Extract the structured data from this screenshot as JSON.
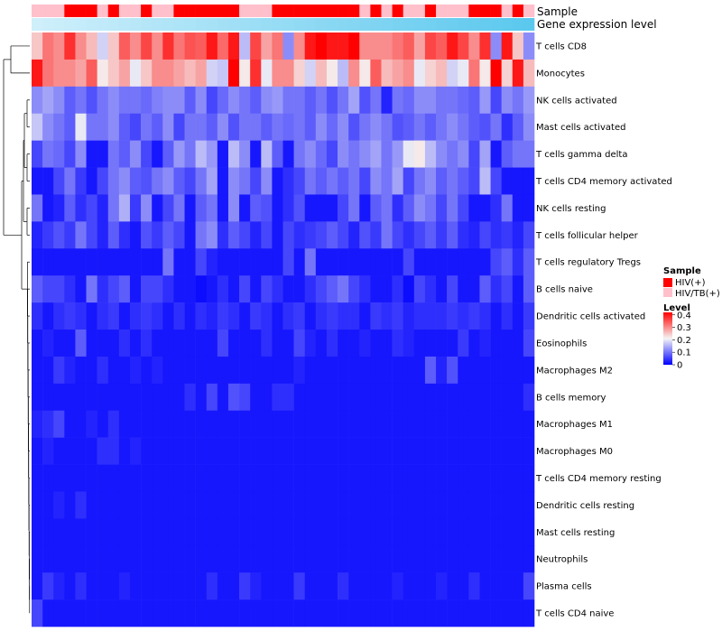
{
  "chart_data": {
    "type": "heatmap",
    "title": "",
    "columns_count": 46,
    "annotation_tracks": [
      {
        "name": "Sample",
        "label": "Sample"
      },
      {
        "name": "Gene expression level",
        "label": "Gene expression level"
      }
    ],
    "sample_groups": [
      "HIV/TB(+)",
      "HIV/TB(+)",
      "HIV/TB(+)",
      "HIV(+)",
      "HIV(+)",
      "HIV(+)",
      "HIV/TB(+)",
      "HIV(+)",
      "HIV/TB(+)",
      "HIV/TB(+)",
      "HIV(+)",
      "HIV/TB(+)",
      "HIV/TB(+)",
      "HIV(+)",
      "HIV(+)",
      "HIV(+)",
      "HIV(+)",
      "HIV(+)",
      "HIV(+)",
      "HIV/TB(+)",
      "HIV/TB(+)",
      "HIV/TB(+)",
      "HIV(+)",
      "HIV(+)",
      "HIV(+)",
      "HIV(+)",
      "HIV(+)",
      "HIV(+)",
      "HIV(+)",
      "HIV(+)",
      "HIV/TB(+)",
      "HIV(+)",
      "HIV/TB(+)",
      "HIV(+)",
      "HIV/TB(+)",
      "HIV/TB(+)",
      "HIV(+)",
      "HIV/TB(+)",
      "HIV/TB(+)",
      "HIV/TB(+)",
      "HIV(+)",
      "HIV(+)",
      "HIV(+)",
      "HIV/TB(+)",
      "HIV(+)",
      "HIV/TB(+)"
    ],
    "rows": [
      "T cells CD8",
      "Monocytes",
      "NK cells activated",
      "Mast cells activated",
      "T cells gamma delta",
      "T cells CD4 memory activated",
      "NK cells resting",
      "T cells follicular helper",
      "T cells regulatory  Tregs",
      "B cells naive",
      "Dendritic cells activated",
      "Eosinophils",
      "Macrophages M2",
      "B cells memory",
      "Macrophages M1",
      "Macrophages M0",
      "T cells CD4 memory resting",
      "Dendritic cells resting",
      "Mast cells resting",
      "Neutrophils",
      "Plasma cells",
      "T cells CD4 naive"
    ],
    "values": [
      [
        0.25,
        0.32,
        0.3,
        0.38,
        0.3,
        0.26,
        0.18,
        0.25,
        0.34,
        0.3,
        0.36,
        0.3,
        0.38,
        0.32,
        0.35,
        0.34,
        0.4,
        0.33,
        0.4,
        0.16,
        0.36,
        0.28,
        0.32,
        0.12,
        0.3,
        0.4,
        0.42,
        0.4,
        0.4,
        0.42,
        0.3,
        0.3,
        0.3,
        0.32,
        0.34,
        0.28,
        0.36,
        0.34,
        0.4,
        0.36,
        0.3,
        0.38,
        0.12,
        0.4,
        0.25,
        0.12
      ],
      [
        0.4,
        0.32,
        0.3,
        0.3,
        0.28,
        0.34,
        0.22,
        0.25,
        0.28,
        0.2,
        0.25,
        0.3,
        0.3,
        0.28,
        0.26,
        0.28,
        0.18,
        0.17,
        0.42,
        0.22,
        0.38,
        0.2,
        0.3,
        0.3,
        0.24,
        0.18,
        0.26,
        0.22,
        0.16,
        0.3,
        0.22,
        0.34,
        0.26,
        0.28,
        0.3,
        0.2,
        0.24,
        0.26,
        0.18,
        0.2,
        0.32,
        0.22,
        0.42,
        0.24,
        0.4,
        0.26
      ],
      [
        0.12,
        0.14,
        0.12,
        0.08,
        0.1,
        0.07,
        0.1,
        0.12,
        0.1,
        0.1,
        0.09,
        0.11,
        0.12,
        0.12,
        0.08,
        0.12,
        0.06,
        0.09,
        0.12,
        0.1,
        0.08,
        0.12,
        0.13,
        0.1,
        0.1,
        0.08,
        0.1,
        0.07,
        0.1,
        0.14,
        0.07,
        0.1,
        0.03,
        0.1,
        0.09,
        0.12,
        0.12,
        0.1,
        0.1,
        0.09,
        0.08,
        0.13,
        0.06,
        0.12,
        0.1,
        0.13
      ],
      [
        0.17,
        0.12,
        0.1,
        0.08,
        0.2,
        0.1,
        0.1,
        0.12,
        0.08,
        0.06,
        0.1,
        0.08,
        0.12,
        0.06,
        0.1,
        0.1,
        0.08,
        0.12,
        0.07,
        0.1,
        0.1,
        0.08,
        0.1,
        0.09,
        0.1,
        0.08,
        0.12,
        0.09,
        0.12,
        0.07,
        0.1,
        0.12,
        0.1,
        0.07,
        0.08,
        0.1,
        0.08,
        0.1,
        0.12,
        0.1,
        0.08,
        0.07,
        0.1,
        0.04,
        0.08,
        0.12
      ],
      [
        0.06,
        0.1,
        0.09,
        0.06,
        0.12,
        0.02,
        0.02,
        0.1,
        0.08,
        0.12,
        0.06,
        0.02,
        0.08,
        0.13,
        0.1,
        0.16,
        0.13,
        0.02,
        0.16,
        0.12,
        0.02,
        0.16,
        0.08,
        0.02,
        0.1,
        0.12,
        0.09,
        0.06,
        0.12,
        0.1,
        0.12,
        0.14,
        0.1,
        0.13,
        0.2,
        0.22,
        0.16,
        0.12,
        0.1,
        0.12,
        0.06,
        0.14,
        0.02,
        0.08,
        0.1,
        0.1
      ],
      [
        0.02,
        0.02,
        0.06,
        0.1,
        0.05,
        0.02,
        0.06,
        0.1,
        0.12,
        0.08,
        0.07,
        0.1,
        0.12,
        0.08,
        0.06,
        0.1,
        0.14,
        0.02,
        0.12,
        0.1,
        0.06,
        0.12,
        0.02,
        0.04,
        0.06,
        0.1,
        0.08,
        0.1,
        0.08,
        0.1,
        0.06,
        0.12,
        0.1,
        0.14,
        0.06,
        0.1,
        0.12,
        0.08,
        0.1,
        0.08,
        0.06,
        0.16,
        0.06,
        0.02,
        0.02,
        0.02
      ],
      [
        0.1,
        0.02,
        0.03,
        0.08,
        0.04,
        0.06,
        0.03,
        0.1,
        0.15,
        0.05,
        0.12,
        0.02,
        0.06,
        0.1,
        0.02,
        0.08,
        0.1,
        0.02,
        0.12,
        0.02,
        0.08,
        0.07,
        0.02,
        0.04,
        0.07,
        0.02,
        0.02,
        0.02,
        0.06,
        0.1,
        0.02,
        0.08,
        0.1,
        0.04,
        0.08,
        0.12,
        0.1,
        0.06,
        0.1,
        0.06,
        0.02,
        0.02,
        0.04,
        0.1,
        0.02,
        0.02
      ],
      [
        0.03,
        0.05,
        0.07,
        0.05,
        0.1,
        0.06,
        0.03,
        0.08,
        0.04,
        0.02,
        0.07,
        0.05,
        0.08,
        0.06,
        0.02,
        0.1,
        0.12,
        0.04,
        0.08,
        0.06,
        0.03,
        0.06,
        0.02,
        0.06,
        0.04,
        0.05,
        0.06,
        0.08,
        0.06,
        0.03,
        0.07,
        0.05,
        0.1,
        0.06,
        0.04,
        0.06,
        0.08,
        0.05,
        0.08,
        0.04,
        0.03,
        0.06,
        0.04,
        0.05,
        0.03,
        0.06
      ],
      [
        0.02,
        0.02,
        0.02,
        0.02,
        0.02,
        0.02,
        0.02,
        0.02,
        0.02,
        0.02,
        0.02,
        0.02,
        0.1,
        0.02,
        0.02,
        0.06,
        0.03,
        0.02,
        0.02,
        0.02,
        0.02,
        0.02,
        0.02,
        0.06,
        0.02,
        0.1,
        0.02,
        0.02,
        0.02,
        0.02,
        0.02,
        0.02,
        0.02,
        0.02,
        0.06,
        0.02,
        0.02,
        0.02,
        0.02,
        0.02,
        0.02,
        0.02,
        0.06,
        0.08,
        0.04,
        0.08
      ],
      [
        0.08,
        0.06,
        0.06,
        0.04,
        0.02,
        0.1,
        0.04,
        0.06,
        0.08,
        0.02,
        0.06,
        0.06,
        0.04,
        0.02,
        0.02,
        0.01,
        0.02,
        0.04,
        0.02,
        0.06,
        0.02,
        0.06,
        0.04,
        0.02,
        0.02,
        0.04,
        0.06,
        0.08,
        0.1,
        0.06,
        0.04,
        0.02,
        0.02,
        0.04,
        0.01,
        0.06,
        0.04,
        0.02,
        0.06,
        0.02,
        0.02,
        0.08,
        0.04,
        0.06,
        0.02,
        0.08
      ],
      [
        0.04,
        0.02,
        0.04,
        0.05,
        0.04,
        0.02,
        0.04,
        0.05,
        0.02,
        0.04,
        0.05,
        0.04,
        0.02,
        0.04,
        0.02,
        0.04,
        0.03,
        0.05,
        0.04,
        0.02,
        0.05,
        0.04,
        0.02,
        0.04,
        0.05,
        0.02,
        0.04,
        0.05,
        0.04,
        0.04,
        0.02,
        0.05,
        0.04,
        0.05,
        0.03,
        0.04,
        0.04,
        0.04,
        0.05,
        0.04,
        0.05,
        0.04,
        0.02,
        0.04,
        0.02,
        0.05
      ],
      [
        0.02,
        0.03,
        0.02,
        0.02,
        0.08,
        0.02,
        0.02,
        0.02,
        0.04,
        0.02,
        0.04,
        0.02,
        0.02,
        0.02,
        0.02,
        0.02,
        0.02,
        0.06,
        0.02,
        0.02,
        0.02,
        0.04,
        0.02,
        0.02,
        0.06,
        0.03,
        0.02,
        0.04,
        0.02,
        0.02,
        0.03,
        0.02,
        0.02,
        0.04,
        0.03,
        0.02,
        0.02,
        0.02,
        0.02,
        0.05,
        0.02,
        0.03,
        0.02,
        0.02,
        0.02,
        0.06
      ],
      [
        0.02,
        0.02,
        0.05,
        0.03,
        0.02,
        0.02,
        0.04,
        0.02,
        0.02,
        0.03,
        0.02,
        0.03,
        0.02,
        0.02,
        0.02,
        0.02,
        0.02,
        0.02,
        0.02,
        0.02,
        0.02,
        0.02,
        0.02,
        0.02,
        0.03,
        0.02,
        0.02,
        0.02,
        0.02,
        0.02,
        0.02,
        0.02,
        0.02,
        0.02,
        0.02,
        0.02,
        0.08,
        0.03,
        0.07,
        0.02,
        0.02,
        0.02,
        0.02,
        0.02,
        0.02,
        0.02
      ],
      [
        0.02,
        0.02,
        0.02,
        0.02,
        0.02,
        0.02,
        0.02,
        0.02,
        0.02,
        0.02,
        0.02,
        0.02,
        0.02,
        0.02,
        0.04,
        0.02,
        0.06,
        0.02,
        0.07,
        0.06,
        0.02,
        0.02,
        0.04,
        0.04,
        0.02,
        0.02,
        0.02,
        0.02,
        0.02,
        0.02,
        0.02,
        0.02,
        0.02,
        0.02,
        0.02,
        0.02,
        0.02,
        0.02,
        0.02,
        0.02,
        0.02,
        0.02,
        0.02,
        0.02,
        0.02,
        0.04
      ],
      [
        0.03,
        0.04,
        0.06,
        0.02,
        0.02,
        0.03,
        0.02,
        0.04,
        0.02,
        0.02,
        0.02,
        0.02,
        0.02,
        0.02,
        0.02,
        0.02,
        0.02,
        0.02,
        0.02,
        0.02,
        0.02,
        0.02,
        0.02,
        0.02,
        0.02,
        0.02,
        0.02,
        0.02,
        0.02,
        0.02,
        0.02,
        0.02,
        0.02,
        0.02,
        0.02,
        0.02,
        0.02,
        0.02,
        0.02,
        0.02,
        0.02,
        0.02,
        0.02,
        0.02,
        0.02,
        0.02
      ],
      [
        0.02,
        0.03,
        0.02,
        0.02,
        0.02,
        0.02,
        0.04,
        0.04,
        0.02,
        0.03,
        0.02,
        0.02,
        0.02,
        0.02,
        0.02,
        0.02,
        0.02,
        0.02,
        0.02,
        0.02,
        0.02,
        0.02,
        0.02,
        0.02,
        0.02,
        0.02,
        0.02,
        0.02,
        0.02,
        0.02,
        0.02,
        0.02,
        0.02,
        0.02,
        0.02,
        0.02,
        0.02,
        0.02,
        0.02,
        0.02,
        0.02,
        0.02,
        0.02,
        0.02,
        0.02,
        0.02
      ],
      [
        0.02,
        0.02,
        0.02,
        0.02,
        0.02,
        0.02,
        0.02,
        0.02,
        0.02,
        0.02,
        0.02,
        0.02,
        0.02,
        0.02,
        0.02,
        0.02,
        0.02,
        0.02,
        0.02,
        0.02,
        0.02,
        0.02,
        0.02,
        0.02,
        0.02,
        0.02,
        0.02,
        0.02,
        0.02,
        0.02,
        0.02,
        0.02,
        0.02,
        0.02,
        0.02,
        0.02,
        0.02,
        0.02,
        0.02,
        0.02,
        0.02,
        0.02,
        0.02,
        0.02,
        0.02,
        0.02
      ],
      [
        0.02,
        0.02,
        0.03,
        0.02,
        0.04,
        0.02,
        0.02,
        0.02,
        0.02,
        0.02,
        0.02,
        0.02,
        0.02,
        0.02,
        0.02,
        0.02,
        0.02,
        0.02,
        0.02,
        0.02,
        0.02,
        0.02,
        0.02,
        0.02,
        0.02,
        0.02,
        0.02,
        0.02,
        0.02,
        0.02,
        0.02,
        0.02,
        0.02,
        0.02,
        0.02,
        0.02,
        0.02,
        0.02,
        0.02,
        0.02,
        0.02,
        0.02,
        0.02,
        0.02,
        0.02,
        0.02
      ],
      [
        0.02,
        0.02,
        0.02,
        0.02,
        0.02,
        0.02,
        0.02,
        0.02,
        0.02,
        0.02,
        0.02,
        0.02,
        0.02,
        0.02,
        0.02,
        0.02,
        0.02,
        0.02,
        0.02,
        0.02,
        0.02,
        0.02,
        0.02,
        0.02,
        0.02,
        0.02,
        0.02,
        0.02,
        0.02,
        0.02,
        0.02,
        0.02,
        0.02,
        0.02,
        0.02,
        0.02,
        0.02,
        0.02,
        0.02,
        0.02,
        0.02,
        0.02,
        0.02,
        0.02,
        0.02,
        0.02
      ],
      [
        0.02,
        0.02,
        0.02,
        0.02,
        0.02,
        0.02,
        0.02,
        0.02,
        0.02,
        0.02,
        0.02,
        0.02,
        0.02,
        0.02,
        0.02,
        0.02,
        0.02,
        0.02,
        0.02,
        0.02,
        0.02,
        0.02,
        0.02,
        0.02,
        0.02,
        0.02,
        0.02,
        0.02,
        0.02,
        0.02,
        0.02,
        0.02,
        0.02,
        0.02,
        0.02,
        0.02,
        0.02,
        0.02,
        0.02,
        0.02,
        0.02,
        0.02,
        0.02,
        0.02,
        0.02,
        0.02
      ],
      [
        0.02,
        0.05,
        0.03,
        0.02,
        0.04,
        0.02,
        0.02,
        0.02,
        0.03,
        0.02,
        0.02,
        0.02,
        0.02,
        0.02,
        0.02,
        0.02,
        0.04,
        0.02,
        0.02,
        0.05,
        0.03,
        0.02,
        0.02,
        0.02,
        0.05,
        0.02,
        0.02,
        0.02,
        0.04,
        0.02,
        0.02,
        0.02,
        0.02,
        0.03,
        0.02,
        0.02,
        0.02,
        0.03,
        0.02,
        0.02,
        0.04,
        0.02,
        0.02,
        0.02,
        0.02,
        0.06
      ],
      [
        0.06,
        0.02,
        0.02,
        0.02,
        0.02,
        0.02,
        0.02,
        0.02,
        0.02,
        0.02,
        0.02,
        0.02,
        0.02,
        0.02,
        0.02,
        0.02,
        0.02,
        0.02,
        0.02,
        0.02,
        0.02,
        0.02,
        0.02,
        0.02,
        0.02,
        0.02,
        0.02,
        0.02,
        0.02,
        0.02,
        0.02,
        0.02,
        0.02,
        0.02,
        0.02,
        0.02,
        0.02,
        0.02,
        0.02,
        0.02,
        0.02,
        0.02,
        0.02,
        0.02,
        0.02,
        0.02
      ]
    ],
    "legend_sample": {
      "title": "Sample",
      "items": [
        {
          "label": "HIV(+)",
          "color": "#ff0000"
        },
        {
          "label": "HIV/TB(+)",
          "color": "#ffc0cb"
        }
      ]
    },
    "legend_level": {
      "title": "Level",
      "ticks": [
        "0.4",
        "0.3",
        "0.2",
        "0.1",
        "0"
      ],
      "tick_values": [
        0.4,
        0.3,
        0.2,
        0.1,
        0
      ],
      "range": [
        0,
        0.42
      ]
    },
    "colors": {
      "low": "#0000ff",
      "mid": "#f5f5f5",
      "high": "#ff0000",
      "expression_track_light": "#cfeffb",
      "expression_track_dark": "#5bc8ee"
    }
  }
}
